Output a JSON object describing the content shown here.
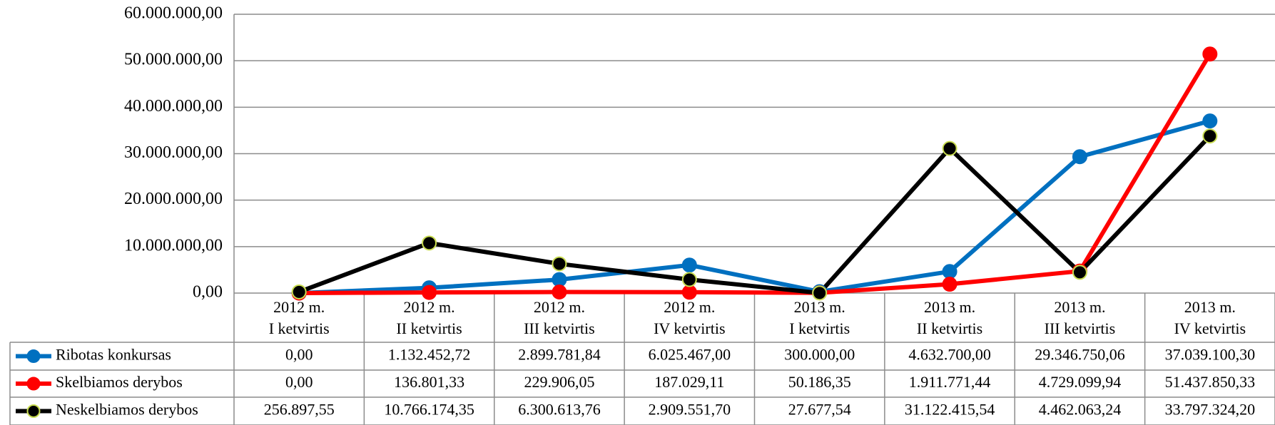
{
  "chart_data": {
    "type": "line",
    "categories": [
      [
        "2012 m.",
        "I ketvirtis"
      ],
      [
        "2012 m.",
        "II ketvirtis"
      ],
      [
        "2012 m.",
        "III ketvirtis"
      ],
      [
        "2012 m.",
        "IV ketvirtis"
      ],
      [
        "2013 m.",
        "I ketvirtis"
      ],
      [
        "2013 m.",
        "II ketvirtis"
      ],
      [
        "2013 m.",
        "III ketvirtis"
      ],
      [
        "2013 m.",
        "IV ketvirtis"
      ]
    ],
    "series": [
      {
        "name": "Ribotas konkursas",
        "color": "#0070c0",
        "marker_edge": "#0070c0",
        "values": [
          0,
          1132452.72,
          2899781.84,
          6025467.0,
          300000.0,
          4632700.0,
          29346750.06,
          37039100.3
        ],
        "value_labels": [
          "0,00",
          "1.132.452,72",
          "2.899.781,84",
          "6.025.467,00",
          "300.000,00",
          "4.632.700,00",
          "29.346.750,06",
          "37.039.100,30"
        ]
      },
      {
        "name": "Skelbiamos derybos",
        "color": "#ff0000",
        "marker_edge": "#ff0000",
        "values": [
          0,
          136801.33,
          229906.05,
          187029.11,
          50186.35,
          1911771.44,
          4729099.94,
          51437850.33
        ],
        "value_labels": [
          "0,00",
          "136.801,33",
          "229.906,05",
          "187.029,11",
          "50.186,35",
          "1.911.771,44",
          "4.729.099,94",
          "51.437.850,33"
        ]
      },
      {
        "name": "Neskelbiamos derybos",
        "color": "#000000",
        "marker_edge": "#c8dc50",
        "values": [
          256897.55,
          10766174.35,
          6300613.76,
          2909551.7,
          27677.54,
          31122415.54,
          4462063.24,
          33797324.2
        ],
        "value_labels": [
          "256.897,55",
          "10.766.174,35",
          "6.300.613,76",
          "2.909.551,70",
          "27.677,54",
          "31.122.415,54",
          "4.462.063,24",
          "33.797.324,20"
        ]
      }
    ],
    "ylim": [
      0,
      60000000
    ],
    "yticks": [
      {
        "value": 0,
        "label": "0,00"
      },
      {
        "value": 10000000,
        "label": "10.000.000,00"
      },
      {
        "value": 20000000,
        "label": "20.000.000,00"
      },
      {
        "value": 30000000,
        "label": "30.000.000,00"
      },
      {
        "value": 40000000,
        "label": "40.000.000,00"
      },
      {
        "value": 50000000,
        "label": "50.000.000,00"
      },
      {
        "value": 60000000,
        "label": "60.000.000,00"
      }
    ],
    "grid": true
  }
}
